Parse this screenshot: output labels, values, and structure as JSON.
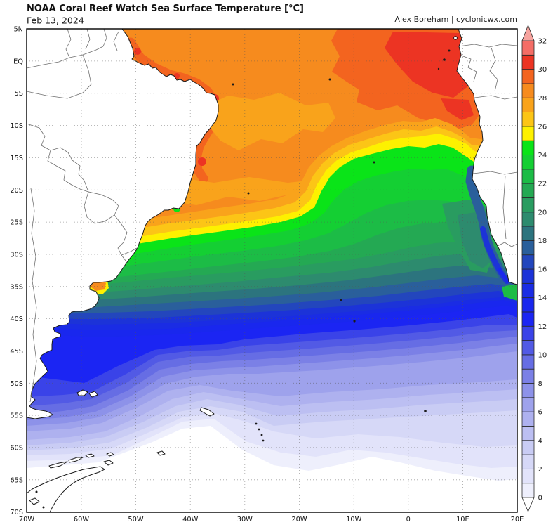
{
  "header": {
    "title": "NOAA Coral Reef Watch Sea Surface Temperature [°C]",
    "date": "Feb 13, 2024",
    "credit": "Alex Boreham | cyclonicwx.com"
  },
  "axes": {
    "lat_labels": [
      "5N",
      "EQ",
      "5S",
      "10S",
      "15S",
      "20S",
      "25S",
      "30S",
      "35S",
      "40S",
      "45S",
      "50S",
      "55S",
      "60S",
      "65S",
      "70S"
    ],
    "lon_labels": [
      "70W",
      "60W",
      "50W",
      "40W",
      "30W",
      "20W",
      "10W",
      "0",
      "10E",
      "20E"
    ]
  },
  "colorbar": {
    "tick_labels": [
      "32",
      "30",
      "28",
      "26",
      "24",
      "22",
      "20",
      "18",
      "16",
      "14",
      "12",
      "10",
      "8",
      "6",
      "4",
      "2",
      "0"
    ],
    "min": 0,
    "max": 32,
    "step_per_segment": 1,
    "above_max_color": "#f6a39e",
    "below_min_color": "#ffffff",
    "segment_colors": [
      "#eeeffc",
      "#e2e3fa",
      "#d6d8f7",
      "#c9ccf4",
      "#bcbff2",
      "#aeb1ef",
      "#9ea2ec",
      "#8d92e9",
      "#7b80e6",
      "#666de4",
      "#525ae5",
      "#3a43e8",
      "#1b25f3",
      "#1927ee",
      "#1a2ce4",
      "#1c33d8",
      "#2346bd",
      "#2a5f9b",
      "#2c747e",
      "#2d8b6e",
      "#299c60",
      "#24a953",
      "#1cbc46",
      "#14cf33",
      "#0ae418",
      "#fdf100",
      "#fcc516",
      "#f9a31b",
      "#f68b1e",
      "#f3641f",
      "#ec3423",
      "#f46d66"
    ]
  }
}
